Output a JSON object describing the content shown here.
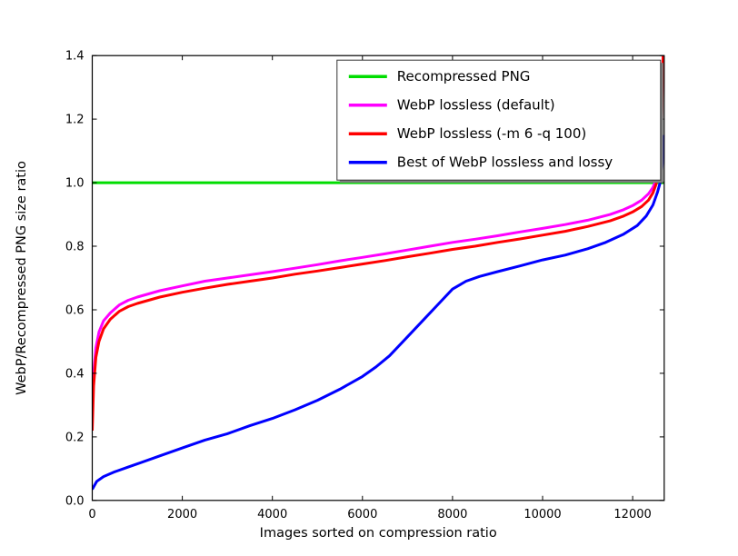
{
  "chart_data": {
    "type": "line",
    "title": "",
    "xlabel": "Images sorted on compression ratio",
    "ylabel": "WebP/Recompressed PNG size ratio",
    "xlim": [
      0,
      12700
    ],
    "ylim": [
      0.0,
      1.4
    ],
    "xticks": [
      0,
      2000,
      4000,
      6000,
      8000,
      10000,
      12000
    ],
    "yticks": [
      0.0,
      0.2,
      0.4,
      0.6,
      0.8,
      1.0,
      1.2,
      1.4
    ],
    "grid": false,
    "legend_position": "upper right",
    "legend_shadow": true,
    "axis_color": "#000000",
    "background_color": "#ffffff",
    "series": [
      {
        "name": "Recompressed PNG",
        "color": "#00dd00",
        "points": [
          [
            0,
            1.0
          ],
          [
            12700,
            1.0
          ]
        ]
      },
      {
        "name": "WebP lossless (default)",
        "color": "#ff00ff",
        "points": [
          [
            0,
            0.27
          ],
          [
            30,
            0.4
          ],
          [
            80,
            0.48
          ],
          [
            150,
            0.53
          ],
          [
            250,
            0.565
          ],
          [
            400,
            0.59
          ],
          [
            600,
            0.615
          ],
          [
            800,
            0.63
          ],
          [
            1000,
            0.64
          ],
          [
            1500,
            0.66
          ],
          [
            2000,
            0.675
          ],
          [
            2500,
            0.69
          ],
          [
            3000,
            0.7
          ],
          [
            3500,
            0.71
          ],
          [
            4000,
            0.72
          ],
          [
            4500,
            0.731
          ],
          [
            5000,
            0.742
          ],
          [
            5500,
            0.754
          ],
          [
            6000,
            0.765
          ],
          [
            6500,
            0.776
          ],
          [
            7000,
            0.788
          ],
          [
            7500,
            0.8
          ],
          [
            8000,
            0.812
          ],
          [
            8500,
            0.822
          ],
          [
            9000,
            0.833
          ],
          [
            9500,
            0.845
          ],
          [
            10000,
            0.856
          ],
          [
            10500,
            0.868
          ],
          [
            11000,
            0.882
          ],
          [
            11500,
            0.9
          ],
          [
            11800,
            0.915
          ],
          [
            12000,
            0.928
          ],
          [
            12200,
            0.945
          ],
          [
            12350,
            0.965
          ],
          [
            12450,
            0.985
          ],
          [
            12520,
            1.01
          ],
          [
            12570,
            1.05
          ],
          [
            12620,
            1.12
          ],
          [
            12650,
            1.25
          ],
          [
            12675,
            1.4
          ]
        ]
      },
      {
        "name": "WebP lossless (-m 6 -q 100)",
        "color": "#ff0000",
        "points": [
          [
            0,
            0.22
          ],
          [
            30,
            0.36
          ],
          [
            80,
            0.45
          ],
          [
            150,
            0.5
          ],
          [
            250,
            0.54
          ],
          [
            400,
            0.57
          ],
          [
            600,
            0.595
          ],
          [
            800,
            0.61
          ],
          [
            1000,
            0.62
          ],
          [
            1500,
            0.64
          ],
          [
            2000,
            0.655
          ],
          [
            2500,
            0.668
          ],
          [
            3000,
            0.68
          ],
          [
            3500,
            0.69
          ],
          [
            4000,
            0.7
          ],
          [
            4500,
            0.712
          ],
          [
            5000,
            0.722
          ],
          [
            5500,
            0.733
          ],
          [
            6000,
            0.744
          ],
          [
            6500,
            0.755
          ],
          [
            7000,
            0.767
          ],
          [
            7500,
            0.778
          ],
          [
            8000,
            0.79
          ],
          [
            8500,
            0.8
          ],
          [
            9000,
            0.812
          ],
          [
            9500,
            0.823
          ],
          [
            10000,
            0.835
          ],
          [
            10500,
            0.847
          ],
          [
            11000,
            0.862
          ],
          [
            11500,
            0.88
          ],
          [
            11800,
            0.895
          ],
          [
            12000,
            0.908
          ],
          [
            12200,
            0.925
          ],
          [
            12350,
            0.945
          ],
          [
            12450,
            0.968
          ],
          [
            12520,
            0.995
          ],
          [
            12570,
            1.035
          ],
          [
            12620,
            1.1
          ],
          [
            12650,
            1.22
          ],
          [
            12675,
            1.4
          ]
        ]
      },
      {
        "name": "Best of WebP lossless and lossy",
        "color": "#0000ff",
        "points": [
          [
            0,
            0.035
          ],
          [
            100,
            0.06
          ],
          [
            250,
            0.075
          ],
          [
            500,
            0.09
          ],
          [
            800,
            0.105
          ],
          [
            1000,
            0.115
          ],
          [
            1500,
            0.14
          ],
          [
            2000,
            0.165
          ],
          [
            2500,
            0.19
          ],
          [
            3000,
            0.21
          ],
          [
            3500,
            0.235
          ],
          [
            4000,
            0.258
          ],
          [
            4500,
            0.285
          ],
          [
            5000,
            0.315
          ],
          [
            5500,
            0.35
          ],
          [
            6000,
            0.39
          ],
          [
            6300,
            0.42
          ],
          [
            6600,
            0.455
          ],
          [
            7000,
            0.515
          ],
          [
            7400,
            0.575
          ],
          [
            7700,
            0.62
          ],
          [
            8000,
            0.665
          ],
          [
            8300,
            0.69
          ],
          [
            8600,
            0.705
          ],
          [
            9000,
            0.72
          ],
          [
            9500,
            0.738
          ],
          [
            10000,
            0.757
          ],
          [
            10500,
            0.772
          ],
          [
            11000,
            0.792
          ],
          [
            11400,
            0.812
          ],
          [
            11800,
            0.838
          ],
          [
            12100,
            0.865
          ],
          [
            12300,
            0.895
          ],
          [
            12450,
            0.93
          ],
          [
            12550,
            0.97
          ],
          [
            12620,
            1.005
          ],
          [
            12660,
            1.06
          ],
          [
            12680,
            1.15
          ]
        ]
      }
    ]
  },
  "legend": {
    "entries": [
      {
        "label": "Recompressed PNG",
        "color": "#00dd00"
      },
      {
        "label": "WebP lossless (default)",
        "color": "#ff00ff"
      },
      {
        "label": "WebP lossless (-m 6 -q 100)",
        "color": "#ff0000"
      },
      {
        "label": "Best of WebP lossless and lossy",
        "color": "#0000ff"
      }
    ]
  }
}
